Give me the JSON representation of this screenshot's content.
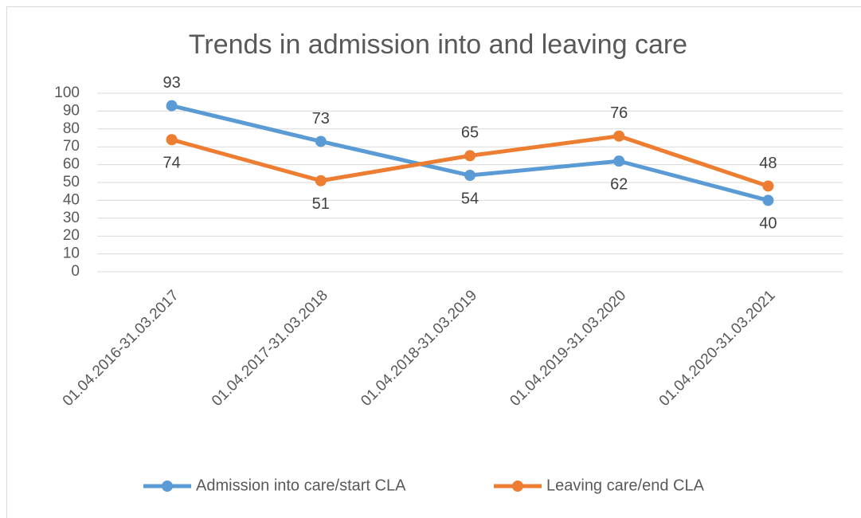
{
  "chart_data": {
    "type": "line",
    "title": "Trends in admission into and leaving care",
    "categories": [
      "01.04.2016-31.03.2017",
      "01.04.2017-31.03.2018",
      "01.04.2018-31.03.2019",
      "01.04.2019-31.03.2020",
      "01.04.2020-31.03.2021"
    ],
    "series": [
      {
        "name": "Admission into care/start CLA",
        "color": "#5b9bd5",
        "values": [
          93,
          73,
          54,
          62,
          40
        ]
      },
      {
        "name": "Leaving care/end CLA",
        "color": "#ed7d31",
        "values": [
          74,
          51,
          65,
          76,
          48
        ]
      }
    ],
    "ylim": [
      0,
      100
    ],
    "yticks": [
      0,
      10,
      20,
      30,
      40,
      50,
      60,
      70,
      80,
      90,
      100
    ],
    "grid": true,
    "legend": "bottom",
    "data_labels": true
  }
}
